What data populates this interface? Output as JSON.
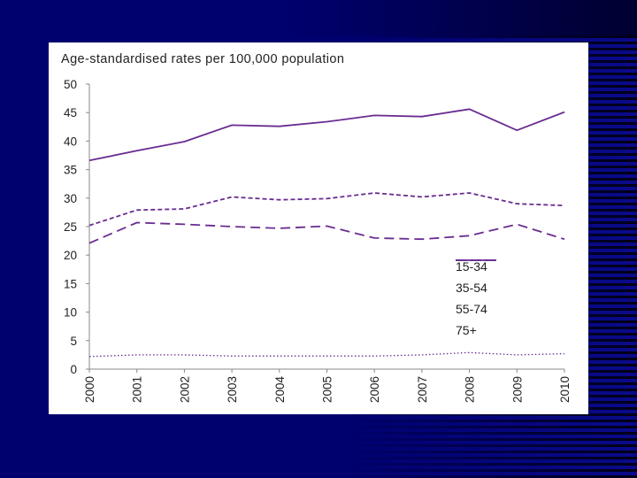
{
  "chart_data": {
    "type": "line",
    "title": "Age-standardised rates per 100,000 population",
    "xlabel": "",
    "ylabel": "",
    "x": [
      "2000",
      "2001",
      "2002",
      "2003",
      "2004",
      "2005",
      "2006",
      "2007",
      "2008",
      "2009",
      "2010"
    ],
    "ylim": [
      0,
      50
    ],
    "yticks": [
      0,
      5,
      10,
      15,
      20,
      25,
      30,
      35,
      40,
      45,
      50
    ],
    "ytick_labels": [
      "0",
      "5",
      "10",
      "15",
      "20",
      "25",
      "30",
      "35",
      "40",
      "45",
      "50"
    ],
    "grid": false,
    "legend_position": "bottom-right",
    "line_color": "#6a2c91",
    "series": [
      {
        "name": "15-34",
        "style": "dotted",
        "values": [
          2.2,
          2.5,
          2.5,
          2.3,
          2.3,
          2.3,
          2.3,
          2.5,
          2.9,
          2.5,
          2.7
        ]
      },
      {
        "name": "35-54",
        "style": "dashed",
        "values": [
          25.2,
          27.9,
          28.1,
          30.2,
          29.7,
          29.9,
          30.9,
          30.2,
          30.9,
          29.0,
          28.7
        ]
      },
      {
        "name": "55-74",
        "style": "solid",
        "values": [
          36.6,
          38.3,
          39.9,
          42.8,
          42.6,
          43.4,
          44.5,
          44.3,
          45.6,
          41.9,
          45.1
        ]
      },
      {
        "name": "75+",
        "style": "longdash",
        "values": [
          22.1,
          25.7,
          25.4,
          25.0,
          24.7,
          25.1,
          23.0,
          22.8,
          23.4,
          25.4,
          22.8
        ]
      }
    ]
  }
}
